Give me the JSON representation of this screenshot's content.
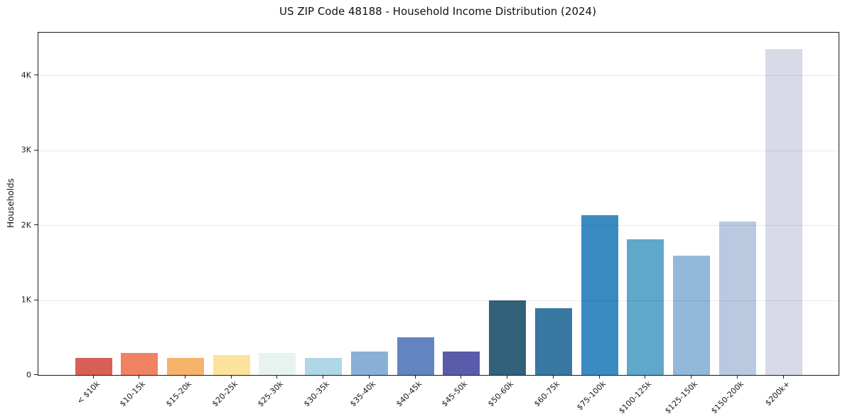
{
  "page": {
    "background": "#ffffff"
  },
  "chart_data": {
    "type": "bar",
    "title": "US ZIP Code 48188 - Household Income Distribution (2024)",
    "xlabel": "",
    "ylabel": "Households",
    "categories": [
      "< $10k",
      "$10-15k",
      "$15-20k",
      "$20-25k",
      "$25-30k",
      "$30-35k",
      "$35-40k",
      "$40-45k",
      "$45-50k",
      "$50-60k",
      "$60-75k",
      "$75-100k",
      "$100-125k",
      "$125-150k",
      "$150-200k",
      "$200k+"
    ],
    "values": [
      230,
      290,
      225,
      270,
      290,
      225,
      315,
      505,
      315,
      1000,
      895,
      2130,
      1810,
      1595,
      2050,
      4350
    ],
    "bar_colors": [
      "#d85f55",
      "#f08262",
      "#f7b26b",
      "#fbe39c",
      "#e7f3f1",
      "#b0d7e7",
      "#89b0d7",
      "#6285c1",
      "#5b5bab",
      "#32617a",
      "#3878a2",
      "#3a8bc2",
      "#60a7cc",
      "#92b9d9",
      "#b9c9e0",
      "#d9dae8"
    ],
    "ytick_labels": [
      "0",
      "1K",
      "2K",
      "3K",
      "4K"
    ],
    "ytick_values": [
      0,
      1000,
      2000,
      3000,
      4000
    ],
    "ylim": [
      0,
      4570
    ],
    "grid": "horizontal",
    "legend": "none"
  },
  "colors": {
    "spine": "#1a1a1a",
    "grid_rgba": "rgba(0,0,0,0.085)",
    "text": "#111111"
  }
}
